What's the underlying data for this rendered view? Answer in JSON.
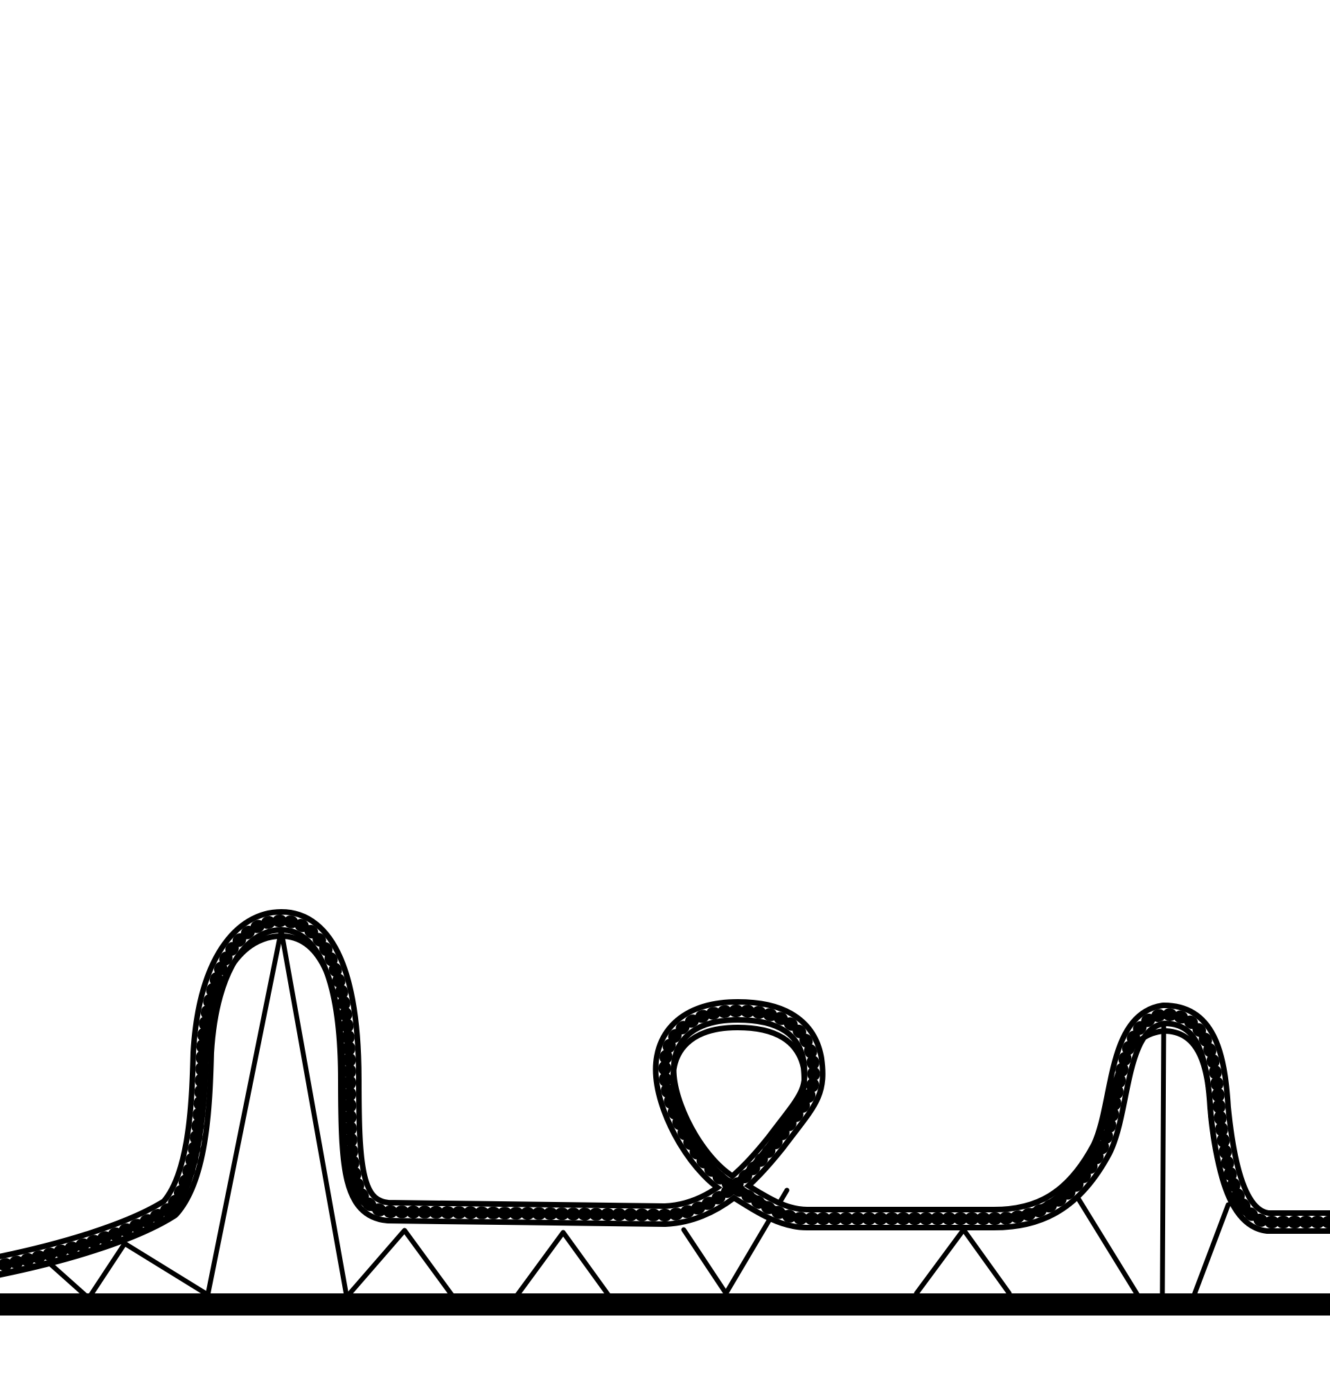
{
  "scene": {
    "subject": "roller-coaster-track",
    "colors": {
      "background": "#ffffff",
      "ink": "#000000",
      "tie_fill": "#ffffff"
    },
    "elements": {
      "ground": "ground-beam",
      "track": "coaster-track",
      "supports": "support-struts"
    }
  }
}
